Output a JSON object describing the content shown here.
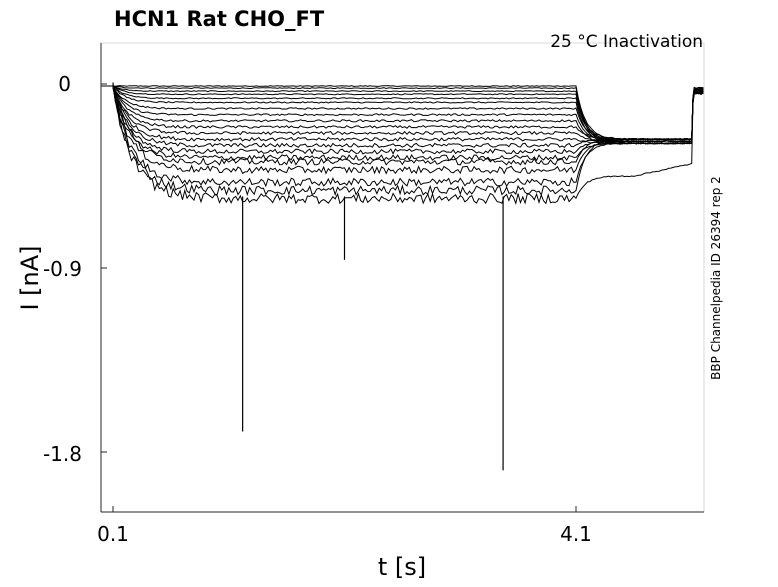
{
  "chart_data": {
    "type": "line",
    "title": "HCN1  Rat  CHO_FT",
    "annotation": "25 °C  Inactivation",
    "side_label": "BBP Channelpedia ID 26394 rep 2",
    "xlabel": "t [s]",
    "ylabel": "I [nA]",
    "x_ticks": [
      0.1,
      4.1
    ],
    "x_tick_labels": [
      "0.1",
      "4.1"
    ],
    "y_ticks": [
      0,
      -0.9,
      -1.8
    ],
    "y_tick_labels": [
      "0",
      "-0.9",
      "-1.8"
    ],
    "xlim": [
      0.0,
      5.2
    ],
    "ylim": [
      -2.07,
      0.2
    ],
    "grid": false,
    "legend": "none",
    "line_color": "#000000",
    "protocol": {
      "holding_current": -0.01,
      "step_start": 0.1,
      "step_end": 4.1,
      "test_end": 5.1,
      "recovery_end": 5.2
    },
    "series_steady_state_currents": [
      -0.01,
      -0.02,
      -0.035,
      -0.05,
      -0.07,
      -0.09,
      -0.12,
      -0.15,
      -0.18,
      -0.21,
      -0.24,
      -0.27,
      -0.3,
      -0.33,
      -0.36,
      -0.38,
      -0.42,
      -0.48,
      -0.52,
      -0.56
    ],
    "spike_artifacts": [
      {
        "t": 1.22,
        "value": -1.7
      },
      {
        "t": 2.1,
        "value": -0.86
      },
      {
        "t": 3.47,
        "value": -1.89
      }
    ]
  }
}
